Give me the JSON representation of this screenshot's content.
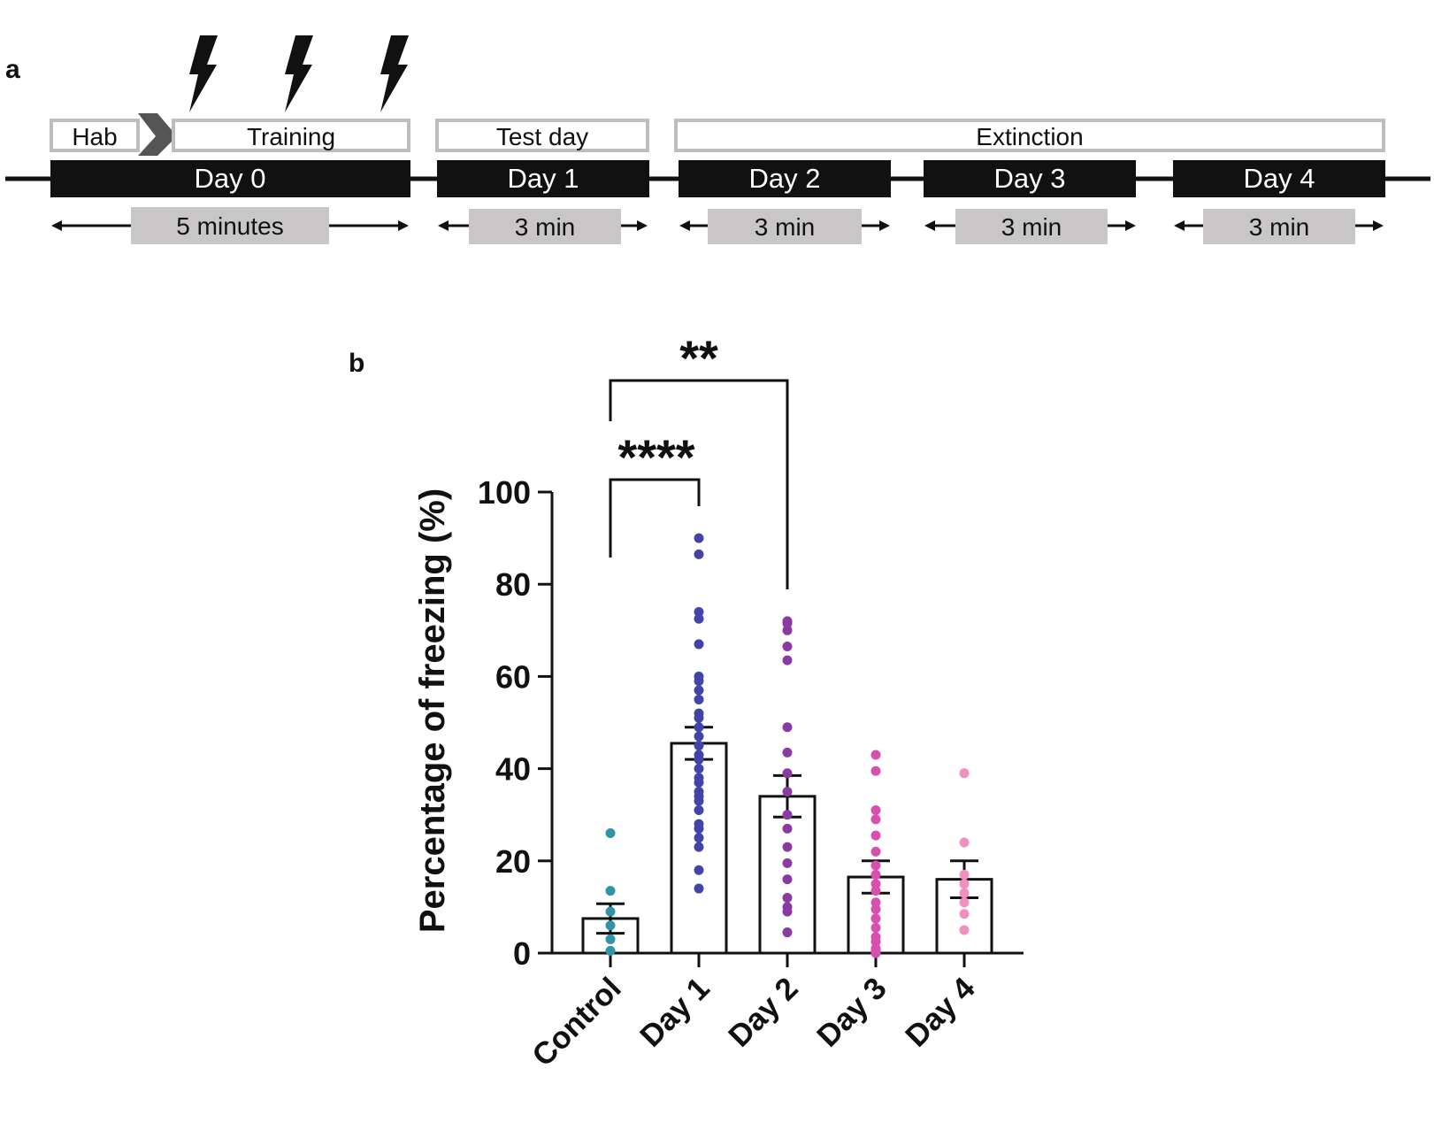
{
  "panel_a": {
    "label": "a",
    "stages": {
      "hab": "Hab",
      "training": "Training",
      "test_day": "Test day",
      "extinction": "Extinction"
    },
    "days": [
      "Day 0",
      "Day 1",
      "Day 2",
      "Day 3",
      "Day 4"
    ],
    "durations": [
      "5 minutes",
      "3 min",
      "3 min",
      "3 min",
      "3 min"
    ],
    "shock_icon": "lightning-bolt-icon",
    "colors": {
      "day_bar": "#111111",
      "duration_box": "#c8c6c6",
      "stage_border": "#bdbdbd",
      "chevron": "#555555"
    }
  },
  "panel_b": {
    "label": "b",
    "significance": [
      {
        "from": "Control",
        "to": "Day 1",
        "label": "****"
      },
      {
        "from": "Control",
        "to": "Day 2",
        "label": "**"
      }
    ]
  },
  "chart_data": {
    "type": "bar",
    "ylabel": "Percentage of freezing (%)",
    "xlabel": "",
    "ylim": [
      0,
      100
    ],
    "yticks": [
      "0",
      "20",
      "40",
      "60",
      "80",
      "100"
    ],
    "categories": [
      "Control",
      "Day 1",
      "Day 2",
      "Day 3",
      "Day 4"
    ],
    "values": [
      7.5,
      45.5,
      34,
      16.5,
      16
    ],
    "errors": [
      3.2,
      3.5,
      4.5,
      3.5,
      4
    ],
    "point_colors": [
      "#2f93aa",
      "#4343a8",
      "#8a3aa2",
      "#d84fb0",
      "#f08fc0"
    ],
    "points": [
      [
        26,
        13.5,
        9,
        6,
        3,
        0.5
      ],
      [
        90,
        86.5,
        74,
        72.5,
        67,
        60,
        59,
        57,
        55,
        52,
        51,
        49,
        47,
        45,
        43,
        42,
        40,
        38,
        37,
        35,
        34,
        33,
        31,
        28,
        27,
        25,
        23,
        18,
        14
      ],
      [
        72,
        71.5,
        70,
        66.5,
        63.5,
        49,
        43.5,
        39,
        35,
        30,
        27,
        23,
        19.5,
        16,
        12,
        10,
        9,
        4.5
      ],
      [
        43,
        39.5,
        31,
        29,
        25.5,
        22,
        19,
        17,
        15,
        13.5,
        11,
        9.5,
        7.5,
        5.5,
        3.5,
        2.5,
        1,
        0.5,
        0
      ],
      [
        39,
        24,
        17,
        15,
        13,
        11,
        8.5,
        5
      ]
    ]
  }
}
